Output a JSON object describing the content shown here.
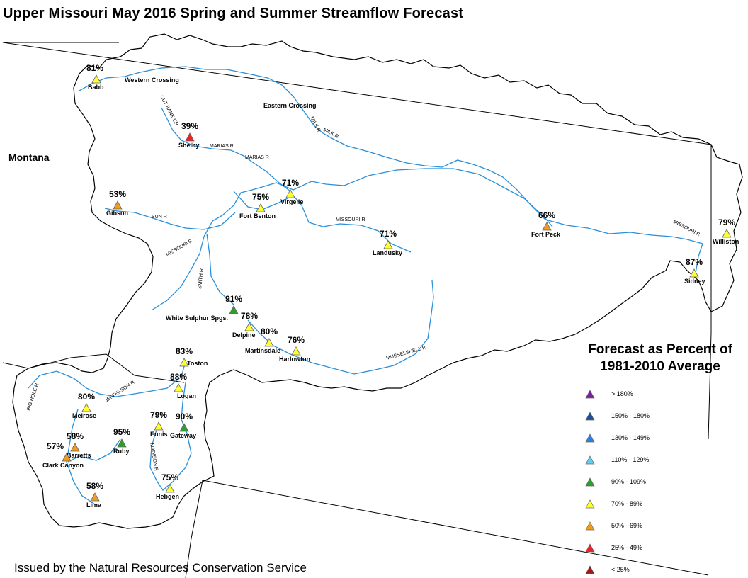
{
  "title": "Upper Missouri May 2016 Spring and Summer Streamflow Forecast",
  "footer": "Issued by the Natural Resources Conservation Service",
  "state_label": "Montana",
  "legend": {
    "title_line1": "Forecast as Percent of",
    "title_line2": "1981-2010 Average",
    "items": [
      {
        "label": "> 180%",
        "color": "#7b1fa2"
      },
      {
        "label": "150% - 180%",
        "color": "#1f4e9e"
      },
      {
        "label": "130% - 149%",
        "color": "#2f7fe0"
      },
      {
        "label": "110% - 129%",
        "color": "#66ccee"
      },
      {
        "label": "90% - 109%",
        "color": "#2e9e2e"
      },
      {
        "label": "70% - 89%",
        "color": "#ffff33"
      },
      {
        "label": "50% - 69%",
        "color": "#f39c1a"
      },
      {
        "label": "25% - 49%",
        "color": "#ee2222"
      },
      {
        "label": "< 25%",
        "color": "#a01818"
      }
    ]
  },
  "stations": [
    {
      "name": "Babb",
      "percent": "81%",
      "color": "#ffff33"
    },
    {
      "name": "Shelby",
      "percent": "39%",
      "color": "#ee2222"
    },
    {
      "name": "Virgelle",
      "percent": "71%",
      "color": "#ffff33"
    },
    {
      "name": "Fort Benton",
      "percent": "75%",
      "color": "#ffff33"
    },
    {
      "name": "Gibson",
      "percent": "53%",
      "color": "#f39c1a"
    },
    {
      "name": "Landusky",
      "percent": "71%",
      "color": "#ffff33"
    },
    {
      "name": "Fort Peck",
      "percent": "66%",
      "color": "#f39c1a"
    },
    {
      "name": "Williston",
      "percent": "79%",
      "color": "#ffff33"
    },
    {
      "name": "Sidney",
      "percent": "87%",
      "color": "#ffff33"
    },
    {
      "name": "White Sulphur Spgs.",
      "percent": "91%",
      "color": "#2e9e2e"
    },
    {
      "name": "Delpine",
      "percent": "78%",
      "color": "#ffff33"
    },
    {
      "name": "Martinsdale",
      "percent": "80%",
      "color": "#ffff33"
    },
    {
      "name": "Harlowton",
      "percent": "76%",
      "color": "#ffff33"
    },
    {
      "name": "Toston",
      "percent": "83%",
      "color": "#ffff33"
    },
    {
      "name": "Logan",
      "percent": "88%",
      "color": "#ffff33"
    },
    {
      "name": "Melrose",
      "percent": "80%",
      "color": "#ffff33"
    },
    {
      "name": "Ennis",
      "percent": "79%",
      "color": "#ffff33"
    },
    {
      "name": "Gateway",
      "percent": "90%",
      "color": "#2e9e2e"
    },
    {
      "name": "Ruby",
      "percent": "95%",
      "color": "#2e9e2e"
    },
    {
      "name": "Barretts",
      "percent": "58%",
      "color": "#f39c1a"
    },
    {
      "name": "Clark Canyon",
      "percent": "57%",
      "color": "#f39c1a"
    },
    {
      "name": "Lima",
      "percent": "58%",
      "color": "#f39c1a"
    },
    {
      "name": "Hebgen",
      "percent": "75%",
      "color": "#ffff33"
    }
  ],
  "places": [
    "Western Crossing",
    "Eastern Crossing"
  ],
  "river_labels": [
    "CUT BANK CR",
    "MARIAS R",
    "MARIAS R",
    "MILK R",
    "MILK R",
    "MISSOURI R",
    "MISSOURI R",
    "MISSOURI R",
    "SUN R",
    "SMITH R",
    "MUSSELSHELL R",
    "JEFFERSON R",
    "BIG HOLE R",
    "MADISON R"
  ]
}
